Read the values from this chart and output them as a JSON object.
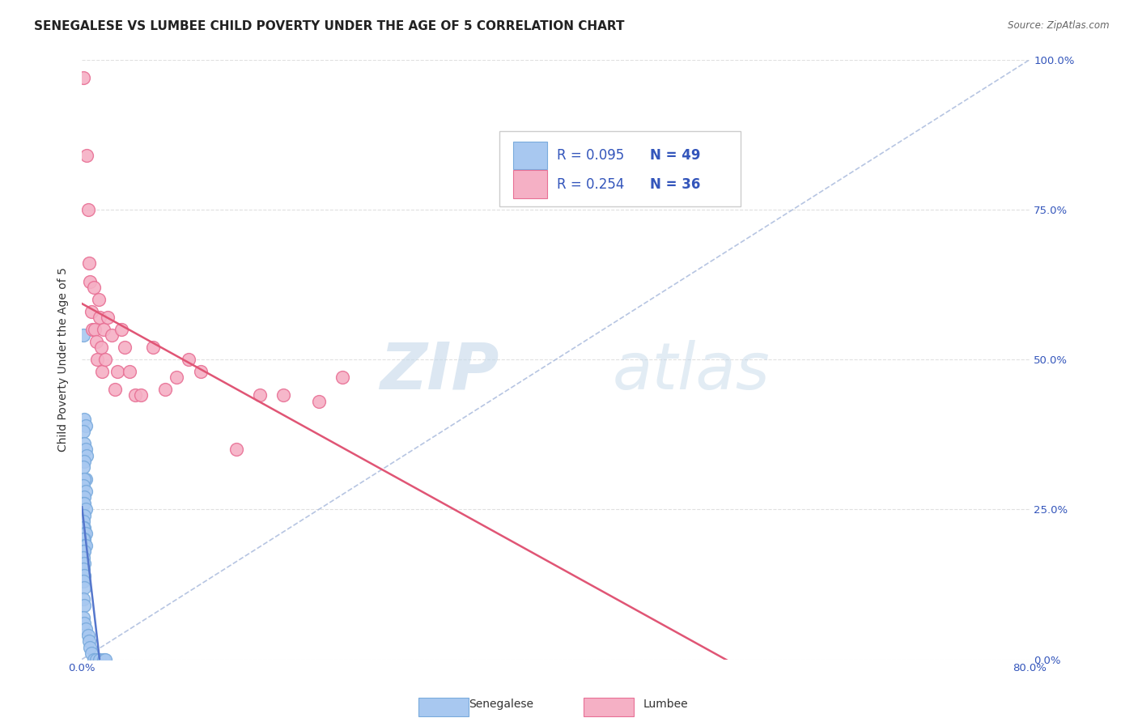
{
  "title": "SENEGALESE VS LUMBEE CHILD POVERTY UNDER THE AGE OF 5 CORRELATION CHART",
  "source": "Source: ZipAtlas.com",
  "ylabel": "Child Poverty Under the Age of 5",
  "xlim": [
    0.0,
    0.8
  ],
  "ylim": [
    0.0,
    1.0
  ],
  "senegalese_color": "#a8c8f0",
  "lumbee_color": "#f5b0c5",
  "senegalese_edge": "#7aabdd",
  "lumbee_edge": "#e87095",
  "trend_blue": "#5577cc",
  "trend_pink": "#e05575",
  "ref_line_color": "#aabbdd",
  "watermark_color": "#c8dff0",
  "background_color": "#ffffff",
  "grid_color": "#dddddd",
  "senegalese_x": [
    0.001,
    0.002,
    0.003,
    0.001,
    0.002,
    0.003,
    0.004,
    0.002,
    0.001,
    0.003,
    0.002,
    0.001,
    0.003,
    0.002,
    0.001,
    0.002,
    0.003,
    0.002,
    0.001,
    0.002,
    0.001,
    0.002,
    0.003,
    0.002,
    0.001,
    0.002,
    0.003,
    0.001,
    0.002,
    0.001,
    0.002,
    0.001,
    0.002,
    0.001,
    0.002,
    0.001,
    0.002,
    0.001,
    0.002,
    0.003,
    0.005,
    0.006,
    0.007,
    0.008,
    0.01,
    0.012,
    0.015,
    0.018,
    0.02
  ],
  "senegalese_y": [
    0.54,
    0.4,
    0.39,
    0.38,
    0.36,
    0.35,
    0.34,
    0.33,
    0.32,
    0.3,
    0.3,
    0.29,
    0.28,
    0.27,
    0.26,
    0.26,
    0.25,
    0.24,
    0.23,
    0.22,
    0.22,
    0.21,
    0.21,
    0.2,
    0.2,
    0.19,
    0.19,
    0.18,
    0.18,
    0.17,
    0.16,
    0.15,
    0.14,
    0.13,
    0.12,
    0.1,
    0.09,
    0.07,
    0.06,
    0.05,
    0.04,
    0.03,
    0.02,
    0.01,
    0.0,
    0.0,
    0.0,
    0.0,
    0.0
  ],
  "lumbee_x": [
    0.001,
    0.004,
    0.005,
    0.006,
    0.007,
    0.008,
    0.009,
    0.01,
    0.011,
    0.012,
    0.013,
    0.014,
    0.015,
    0.016,
    0.017,
    0.018,
    0.02,
    0.022,
    0.025,
    0.028,
    0.03,
    0.033,
    0.036,
    0.04,
    0.045,
    0.05,
    0.06,
    0.07,
    0.08,
    0.09,
    0.1,
    0.13,
    0.15,
    0.17,
    0.2,
    0.22
  ],
  "lumbee_y": [
    0.97,
    0.84,
    0.75,
    0.66,
    0.63,
    0.58,
    0.55,
    0.62,
    0.55,
    0.53,
    0.5,
    0.6,
    0.57,
    0.52,
    0.48,
    0.55,
    0.5,
    0.57,
    0.54,
    0.45,
    0.48,
    0.55,
    0.52,
    0.48,
    0.44,
    0.44,
    0.52,
    0.45,
    0.47,
    0.5,
    0.48,
    0.35,
    0.44,
    0.44,
    0.43,
    0.47
  ],
  "title_fontsize": 11,
  "label_fontsize": 10,
  "tick_fontsize": 9.5,
  "legend_fontsize": 12
}
